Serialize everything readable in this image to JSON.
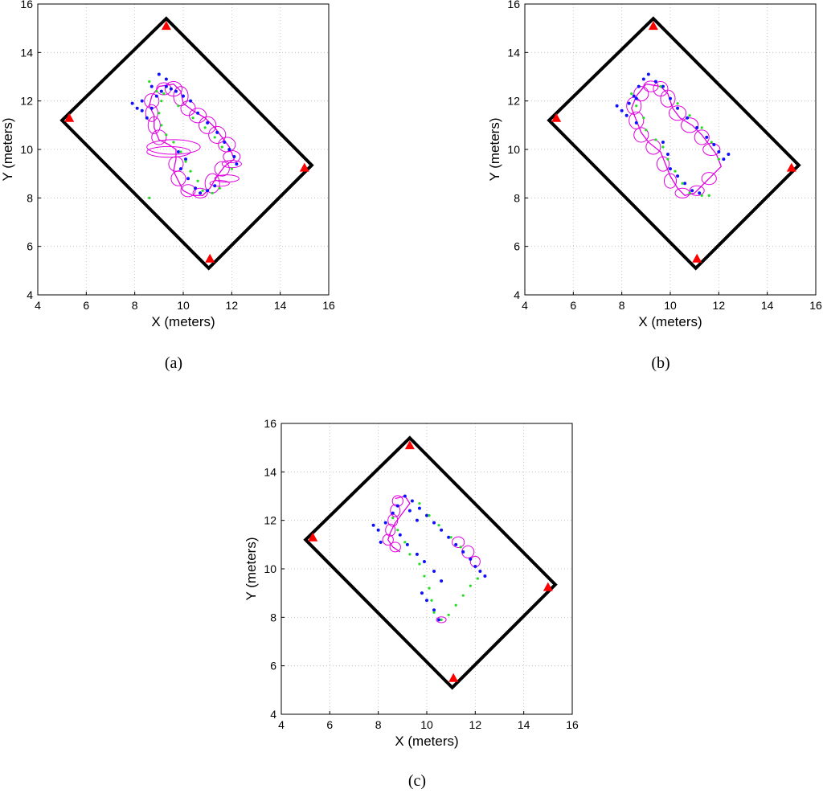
{
  "chart_data": [
    {
      "panel": "(a)",
      "type": "scatter",
      "xlabel": "X (meters)",
      "ylabel": "Y (meters)",
      "xlim": [
        4,
        16
      ],
      "ylim": [
        4,
        16
      ],
      "xticks": [
        "4",
        "6",
        "8",
        "10",
        "12",
        "14",
        "16"
      ],
      "yticks": [
        "4",
        "6",
        "8",
        "10",
        "12",
        "14",
        "16"
      ],
      "grid": true,
      "boundary": [
        [
          9.3,
          15.4
        ],
        [
          15.3,
          9.35
        ],
        [
          11.05,
          5.1
        ],
        [
          5.0,
          11.2
        ]
      ],
      "anchors": [
        [
          9.3,
          15.1
        ],
        [
          15.0,
          9.25
        ],
        [
          11.1,
          5.5
        ],
        [
          5.3,
          11.3
        ]
      ],
      "blue_points": [
        [
          7.9,
          11.9
        ],
        [
          8.1,
          11.7
        ],
        [
          8.3,
          11.6
        ],
        [
          8.5,
          11.3
        ],
        [
          8.7,
          11.7
        ],
        [
          8.9,
          12.2
        ],
        [
          9.1,
          12.4
        ],
        [
          9.3,
          12.6
        ],
        [
          9.5,
          12.5
        ],
        [
          9.7,
          12.4
        ],
        [
          10.0,
          12.2
        ],
        [
          10.3,
          12.0
        ],
        [
          10.6,
          11.5
        ],
        [
          11.0,
          11.1
        ],
        [
          11.4,
          10.7
        ],
        [
          11.7,
          10.3
        ],
        [
          11.9,
          10.0
        ],
        [
          12.1,
          9.7
        ],
        [
          12.2,
          9.4
        ],
        [
          9.9,
          9.2
        ],
        [
          10.2,
          8.8
        ],
        [
          10.5,
          8.4
        ],
        [
          10.7,
          8.2
        ],
        [
          11.0,
          8.3
        ],
        [
          11.3,
          8.5
        ],
        [
          8.3,
          12.0
        ],
        [
          8.7,
          12.6
        ],
        [
          9.0,
          13.1
        ],
        [
          9.3,
          12.9
        ],
        [
          10.1,
          9.6
        ],
        [
          9.8,
          9.9
        ]
      ],
      "green_points": [
        [
          8.6,
          12.8
        ],
        [
          8.9,
          12.4
        ],
        [
          9.1,
          12.0
        ],
        [
          9.0,
          11.5
        ],
        [
          9.1,
          11.0
        ],
        [
          9.3,
          10.6
        ],
        [
          9.6,
          10.3
        ],
        [
          9.9,
          9.9
        ],
        [
          10.1,
          9.5
        ],
        [
          10.3,
          9.1
        ],
        [
          10.6,
          8.7
        ],
        [
          10.8,
          8.3
        ],
        [
          11.2,
          8.2
        ],
        [
          11.5,
          8.4
        ],
        [
          8.6,
          8.0
        ],
        [
          9.8,
          11.8
        ],
        [
          10.4,
          11.3
        ],
        [
          10.9,
          10.9
        ],
        [
          11.3,
          10.5
        ],
        [
          11.6,
          10.1
        ],
        [
          9.2,
          12.3
        ],
        [
          12.0,
          9.2
        ]
      ],
      "trajectory": [
        [
          9.0,
          12.6
        ],
        [
          9.6,
          12.7
        ],
        [
          9.9,
          12.4
        ],
        [
          10.0,
          11.9
        ],
        [
          10.4,
          11.6
        ],
        [
          10.9,
          11.3
        ],
        [
          11.3,
          10.9
        ],
        [
          11.6,
          10.5
        ],
        [
          11.9,
          10.1
        ],
        [
          12.1,
          9.6
        ],
        [
          11.7,
          9.3
        ],
        [
          11.4,
          8.9
        ],
        [
          11.1,
          8.4
        ],
        [
          10.8,
          8.1
        ],
        [
          10.4,
          8.1
        ],
        [
          10.0,
          8.3
        ],
        [
          9.8,
          8.7
        ],
        [
          9.6,
          9.1
        ],
        [
          9.7,
          9.6
        ],
        [
          9.7,
          10.0
        ],
        [
          9.4,
          10.2
        ],
        [
          9.0,
          10.4
        ],
        [
          8.8,
          10.9
        ],
        [
          8.8,
          11.4
        ],
        [
          8.6,
          11.8
        ],
        [
          8.7,
          12.2
        ],
        [
          9.0,
          12.6
        ]
      ],
      "ellipses": [
        [
          9.2,
          12.5,
          0.3,
          0.25,
          0
        ],
        [
          9.6,
          12.5,
          0.35,
          0.3,
          0
        ],
        [
          9.9,
          12.2,
          0.3,
          0.4,
          0
        ],
        [
          10.2,
          11.7,
          0.3,
          0.3,
          0
        ],
        [
          10.6,
          11.4,
          0.35,
          0.3,
          0
        ],
        [
          11.0,
          11.0,
          0.35,
          0.35,
          0
        ],
        [
          11.4,
          10.6,
          0.35,
          0.35,
          0
        ],
        [
          11.8,
          10.2,
          0.35,
          0.3,
          0
        ],
        [
          12.0,
          9.7,
          0.35,
          0.25,
          0
        ],
        [
          11.6,
          9.2,
          0.3,
          0.3,
          0
        ],
        [
          11.2,
          8.6,
          0.3,
          0.4,
          0
        ],
        [
          10.7,
          8.2,
          0.3,
          0.2,
          0
        ],
        [
          10.2,
          8.3,
          0.3,
          0.25,
          0
        ],
        [
          9.8,
          8.8,
          0.3,
          0.3,
          0
        ],
        [
          9.7,
          9.4,
          0.3,
          0.3,
          0
        ],
        [
          9.4,
          9.9,
          0.9,
          0.22,
          0
        ],
        [
          9.6,
          10.1,
          1.1,
          0.3,
          0
        ],
        [
          9.0,
          10.5,
          0.3,
          0.3,
          0
        ],
        [
          8.8,
          11.0,
          0.25,
          0.35,
          0
        ],
        [
          8.7,
          11.5,
          0.25,
          0.35,
          0
        ],
        [
          8.7,
          12.0,
          0.3,
          0.3,
          0
        ],
        [
          11.8,
          8.8,
          0.5,
          0.15,
          0
        ],
        [
          11.5,
          8.6,
          0.4,
          0.12,
          0
        ],
        [
          12.0,
          9.4,
          0.4,
          0.15,
          0
        ]
      ]
    },
    {
      "panel": "(b)",
      "type": "scatter",
      "xlabel": "X (meters)",
      "ylabel": "Y (meters)",
      "xlim": [
        4,
        16
      ],
      "ylim": [
        4,
        16
      ],
      "xticks": [
        "4",
        "6",
        "8",
        "10",
        "12",
        "14",
        "16"
      ],
      "yticks": [
        "4",
        "6",
        "8",
        "10",
        "12",
        "14",
        "16"
      ],
      "grid": true,
      "boundary": [
        [
          9.3,
          15.4
        ],
        [
          15.3,
          9.35
        ],
        [
          11.05,
          5.1
        ],
        [
          5.0,
          11.2
        ]
      ],
      "anchors": [
        [
          9.3,
          15.1
        ],
        [
          15.0,
          9.25
        ],
        [
          11.1,
          5.5
        ],
        [
          5.3,
          11.3
        ]
      ],
      "blue_points": [
        [
          7.8,
          11.8
        ],
        [
          8.0,
          11.6
        ],
        [
          8.2,
          11.4
        ],
        [
          8.3,
          11.9
        ],
        [
          8.5,
          12.2
        ],
        [
          8.7,
          12.6
        ],
        [
          8.9,
          12.9
        ],
        [
          9.1,
          13.1
        ],
        [
          9.4,
          12.8
        ],
        [
          9.7,
          12.6
        ],
        [
          10.0,
          12.1
        ],
        [
          10.3,
          11.7
        ],
        [
          10.7,
          11.3
        ],
        [
          11.1,
          10.9
        ],
        [
          11.5,
          10.5
        ],
        [
          11.8,
          10.2
        ],
        [
          12.0,
          9.9
        ],
        [
          12.2,
          9.6
        ],
        [
          12.4,
          9.8
        ],
        [
          10.0,
          9.2
        ],
        [
          10.3,
          8.9
        ],
        [
          10.6,
          8.6
        ],
        [
          10.9,
          8.3
        ],
        [
          11.2,
          8.2
        ],
        [
          8.6,
          11.1
        ],
        [
          9.7,
          10.3
        ],
        [
          9.9,
          9.8
        ],
        [
          8.6,
          12.1
        ]
      ],
      "green_points": [
        [
          8.4,
          12.3
        ],
        [
          8.6,
          11.8
        ],
        [
          8.9,
          11.3
        ],
        [
          9.0,
          10.8
        ],
        [
          9.4,
          10.4
        ],
        [
          9.7,
          10.1
        ],
        [
          9.9,
          9.6
        ],
        [
          10.2,
          9.1
        ],
        [
          10.5,
          8.6
        ],
        [
          10.8,
          8.2
        ],
        [
          11.3,
          8.1
        ],
        [
          11.6,
          8.1
        ],
        [
          9.6,
          12.6
        ],
        [
          10.3,
          11.9
        ],
        [
          10.8,
          11.4
        ],
        [
          11.3,
          10.9
        ],
        [
          11.7,
          10.3
        ],
        [
          12.0,
          9.6
        ]
      ],
      "trajectory": [
        [
          9.0,
          12.7
        ],
        [
          9.6,
          12.6
        ],
        [
          9.9,
          12.3
        ],
        [
          10.1,
          11.7
        ],
        [
          10.4,
          11.3
        ],
        [
          10.9,
          11.0
        ],
        [
          11.3,
          10.6
        ],
        [
          11.6,
          10.2
        ],
        [
          11.9,
          9.8
        ],
        [
          12.1,
          9.3
        ],
        [
          11.7,
          8.9
        ],
        [
          11.3,
          8.5
        ],
        [
          11.0,
          8.2
        ],
        [
          10.6,
          8.1
        ],
        [
          10.3,
          8.4
        ],
        [
          10.0,
          8.9
        ],
        [
          9.8,
          9.4
        ],
        [
          9.6,
          9.9
        ],
        [
          9.1,
          10.3
        ],
        [
          8.8,
          10.7
        ],
        [
          8.6,
          11.2
        ],
        [
          8.4,
          11.7
        ],
        [
          8.6,
          12.2
        ],
        [
          9.0,
          12.7
        ]
      ],
      "ellipses": [
        [
          9.2,
          12.6,
          0.3,
          0.22,
          0
        ],
        [
          9.6,
          12.5,
          0.3,
          0.3,
          0
        ],
        [
          9.9,
          12.1,
          0.3,
          0.35,
          0
        ],
        [
          10.3,
          11.5,
          0.35,
          0.3,
          0
        ],
        [
          10.8,
          11.0,
          0.35,
          0.3,
          0
        ],
        [
          11.3,
          10.5,
          0.3,
          0.3,
          0
        ],
        [
          11.7,
          10.0,
          0.35,
          0.25,
          0
        ],
        [
          11.6,
          8.8,
          0.3,
          0.25,
          0
        ],
        [
          11.1,
          8.3,
          0.3,
          0.2,
          0
        ],
        [
          10.5,
          8.2,
          0.3,
          0.2,
          0
        ],
        [
          10.0,
          8.7,
          0.25,
          0.3,
          0
        ],
        [
          9.7,
          9.4,
          0.25,
          0.3,
          0
        ],
        [
          9.3,
          10.1,
          0.3,
          0.3,
          0
        ],
        [
          8.8,
          10.6,
          0.3,
          0.3,
          0
        ],
        [
          8.6,
          11.2,
          0.3,
          0.35,
          0
        ],
        [
          8.5,
          11.8,
          0.3,
          0.35,
          0
        ],
        [
          8.8,
          12.3,
          0.3,
          0.3,
          0
        ]
      ]
    },
    {
      "panel": "(c)",
      "type": "scatter",
      "xlabel": "X (meters)",
      "ylabel": "Y (meters)",
      "xlim": [
        4,
        16
      ],
      "ylim": [
        4,
        16
      ],
      "xticks": [
        "4",
        "6",
        "8",
        "10",
        "12",
        "14",
        "16"
      ],
      "yticks": [
        "4",
        "6",
        "8",
        "10",
        "12",
        "14",
        "16"
      ],
      "grid": true,
      "boundary": [
        [
          9.3,
          15.4
        ],
        [
          15.3,
          9.35
        ],
        [
          11.05,
          5.1
        ],
        [
          5.0,
          11.2
        ]
      ],
      "anchors": [
        [
          9.3,
          15.1
        ],
        [
          15.0,
          9.25
        ],
        [
          11.1,
          5.5
        ],
        [
          5.3,
          11.3
        ]
      ],
      "blue_points": [
        [
          7.8,
          11.8
        ],
        [
          8.0,
          11.6
        ],
        [
          8.1,
          11.1
        ],
        [
          8.3,
          11.9
        ],
        [
          8.6,
          12.3
        ],
        [
          8.8,
          12.6
        ],
        [
          9.1,
          13.0
        ],
        [
          9.4,
          12.8
        ],
        [
          9.7,
          12.5
        ],
        [
          10.0,
          12.2
        ],
        [
          10.3,
          11.9
        ],
        [
          10.6,
          11.6
        ],
        [
          10.9,
          11.3
        ],
        [
          11.2,
          11.0
        ],
        [
          11.5,
          10.7
        ],
        [
          11.8,
          10.4
        ],
        [
          12.0,
          10.1
        ],
        [
          12.2,
          9.9
        ],
        [
          12.4,
          9.7
        ],
        [
          9.3,
          12.4
        ],
        [
          9.6,
          12.0
        ],
        [
          8.9,
          11.4
        ],
        [
          9.2,
          11.0
        ],
        [
          9.6,
          10.6
        ],
        [
          9.9,
          10.3
        ],
        [
          10.3,
          9.9
        ],
        [
          10.6,
          9.5
        ],
        [
          9.8,
          9.0
        ],
        [
          10.0,
          8.7
        ],
        [
          10.3,
          8.3
        ],
        [
          10.5,
          7.9
        ]
      ],
      "green_points": [
        [
          8.6,
          12.1
        ],
        [
          8.8,
          11.6
        ],
        [
          9.1,
          11.1
        ],
        [
          9.3,
          10.6
        ],
        [
          9.7,
          10.2
        ],
        [
          9.9,
          9.7
        ],
        [
          10.1,
          9.2
        ],
        [
          10.2,
          8.7
        ],
        [
          10.3,
          8.2
        ],
        [
          10.6,
          7.9
        ],
        [
          10.9,
          8.1
        ],
        [
          11.2,
          8.5
        ],
        [
          11.5,
          8.9
        ],
        [
          11.8,
          9.3
        ],
        [
          12.1,
          9.6
        ],
        [
          9.7,
          12.7
        ],
        [
          10.1,
          12.2
        ],
        [
          10.5,
          11.8
        ],
        [
          11.0,
          11.3
        ],
        [
          11.4,
          10.9
        ]
      ],
      "trajectory": [
        [
          8.7,
          12.9
        ],
        [
          9.1,
          13.0
        ],
        [
          9.3,
          12.7
        ],
        [
          9.0,
          12.3
        ],
        [
          8.7,
          11.9
        ],
        [
          8.5,
          11.5
        ],
        [
          8.4,
          11.2
        ],
        [
          8.6,
          10.9
        ],
        [
          8.9,
          10.7
        ]
      ],
      "ellipses": [
        [
          8.8,
          12.8,
          0.22,
          0.22,
          0
        ],
        [
          8.7,
          12.4,
          0.2,
          0.25,
          0
        ],
        [
          8.6,
          12.0,
          0.2,
          0.25,
          0
        ],
        [
          8.5,
          11.6,
          0.2,
          0.25,
          0
        ],
        [
          8.4,
          11.2,
          0.22,
          0.22,
          0
        ],
        [
          8.7,
          10.9,
          0.22,
          0.2,
          0
        ],
        [
          11.3,
          11.1,
          0.25,
          0.22,
          0
        ],
        [
          11.7,
          10.7,
          0.25,
          0.25,
          0
        ],
        [
          12.0,
          10.3,
          0.2,
          0.22,
          0
        ],
        [
          10.6,
          7.9,
          0.2,
          0.12,
          0
        ]
      ]
    }
  ]
}
